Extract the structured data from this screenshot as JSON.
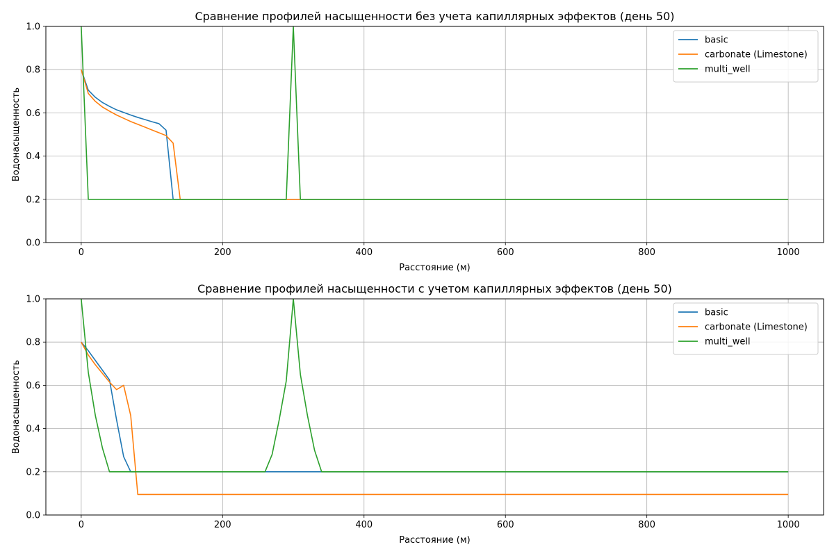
{
  "chart_data": [
    {
      "type": "line",
      "title": "Сравнение профилей насыщенности без учета капиллярных эффектов (день 50)",
      "xlabel": "Расстояние (м)",
      "ylabel": "Водонасыщенность",
      "xlim": [
        -50,
        1050
      ],
      "ylim": [
        0.0,
        1.0
      ],
      "xticks": [
        0,
        200,
        400,
        600,
        800,
        1000
      ],
      "yticks": [
        0.0,
        0.2,
        0.4,
        0.6,
        0.8,
        1.0
      ],
      "grid": true,
      "legend": "top-right",
      "series": [
        {
          "name": "basic",
          "color": "#1f77b4",
          "x": [
            0,
            10,
            20,
            30,
            40,
            50,
            60,
            70,
            80,
            90,
            100,
            110,
            120,
            130,
            1000
          ],
          "y": [
            0.8,
            0.705,
            0.672,
            0.648,
            0.63,
            0.614,
            0.602,
            0.59,
            0.579,
            0.569,
            0.559,
            0.55,
            0.52,
            0.2,
            0.2
          ]
        },
        {
          "name": "carbonate (Limestone)",
          "color": "#ff7f0e",
          "x": [
            0,
            10,
            20,
            30,
            40,
            50,
            60,
            70,
            80,
            90,
            100,
            110,
            120,
            130,
            140,
            1000
          ],
          "y": [
            0.8,
            0.69,
            0.653,
            0.627,
            0.608,
            0.59,
            0.575,
            0.56,
            0.547,
            0.534,
            0.521,
            0.508,
            0.495,
            0.46,
            0.2,
            0.2
          ]
        },
        {
          "name": "multi_well",
          "color": "#2ca02c",
          "x": [
            0,
            10,
            290,
            300,
            310,
            1000
          ],
          "y": [
            1.0,
            0.2,
            0.2,
            1.0,
            0.2,
            0.2
          ]
        }
      ]
    },
    {
      "type": "line",
      "title": "Сравнение профилей насыщенности с учетом капиллярных эффектов (день 50)",
      "xlabel": "Расстояние (м)",
      "ylabel": "Водонасыщенность",
      "xlim": [
        -50,
        1050
      ],
      "ylim": [
        0.0,
        1.0
      ],
      "xticks": [
        0,
        200,
        400,
        600,
        800,
        1000
      ],
      "yticks": [
        0.0,
        0.2,
        0.4,
        0.6,
        0.8,
        1.0
      ],
      "grid": true,
      "legend": "top-right",
      "series": [
        {
          "name": "basic",
          "color": "#1f77b4",
          "x": [
            0,
            10,
            20,
            30,
            40,
            50,
            60,
            70,
            1000
          ],
          "y": [
            0.8,
            0.76,
            0.715,
            0.67,
            0.625,
            0.44,
            0.27,
            0.2,
            0.2
          ]
        },
        {
          "name": "carbonate (Limestone)",
          "color": "#ff7f0e",
          "x": [
            0,
            10,
            20,
            30,
            40,
            50,
            60,
            70,
            80,
            1000
          ],
          "y": [
            0.8,
            0.74,
            0.695,
            0.655,
            0.615,
            0.58,
            0.6,
            0.46,
            0.095,
            0.095
          ]
        },
        {
          "name": "multi_well",
          "color": "#2ca02c",
          "x": [
            0,
            10,
            20,
            30,
            40,
            260,
            270,
            280,
            290,
            300,
            310,
            320,
            330,
            340,
            1000
          ],
          "y": [
            1.0,
            0.66,
            0.46,
            0.31,
            0.2,
            0.2,
            0.28,
            0.44,
            0.62,
            1.0,
            0.65,
            0.46,
            0.3,
            0.2,
            0.2
          ]
        }
      ]
    }
  ]
}
